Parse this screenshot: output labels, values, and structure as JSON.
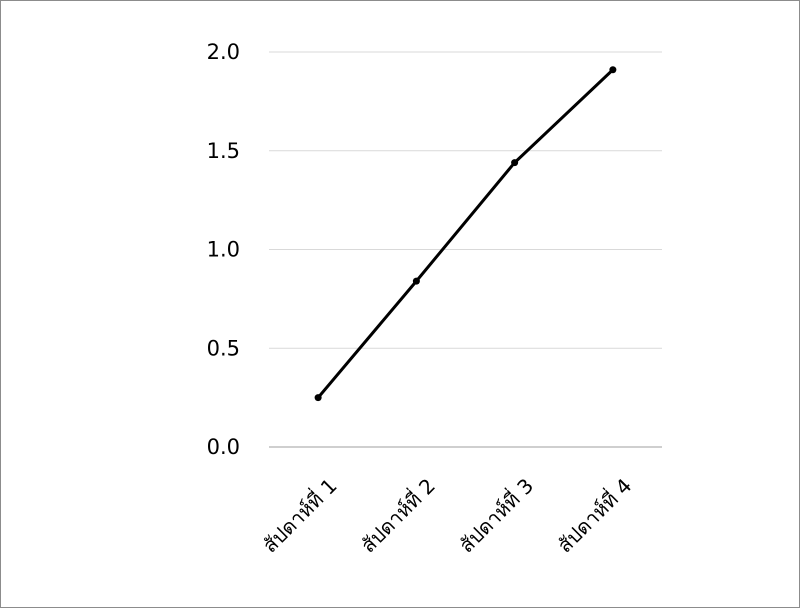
{
  "chart_data": {
    "type": "line",
    "categories": [
      "สัปดาห์ที่ 1",
      "สัปดาห์ที่ 2",
      "สัปดาห์ที่ 3",
      "สัปดาห์ที่ 4"
    ],
    "series": [
      {
        "values": [
          0.25,
          0.84,
          1.44,
          1.91
        ]
      }
    ],
    "ylim": [
      0,
      2
    ],
    "yticks": [
      "0.0",
      "0.5",
      "1.0",
      "1.5",
      "2.0"
    ],
    "grid": true,
    "legend": "none",
    "title": "",
    "xlabel": "",
    "ylabel": "",
    "colors": {
      "line": "#000000",
      "grid": "#d9d9d9",
      "axis": "#bfbfbf"
    }
  }
}
